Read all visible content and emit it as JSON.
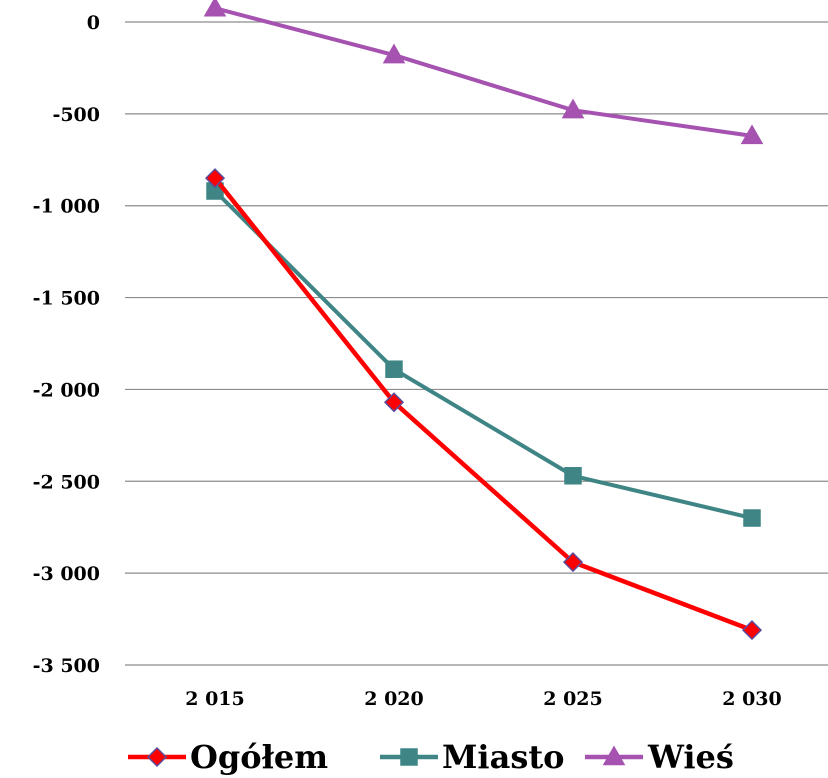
{
  "chart_data": {
    "type": "line",
    "title": "",
    "xlabel": "",
    "ylabel": "",
    "x": [
      "2 015",
      "2 020",
      "2 025",
      "2 030"
    ],
    "ylim": [
      -3500,
      0
    ],
    "yticks": [
      0,
      -500,
      -1000,
      -1500,
      -2000,
      -2500,
      -3000,
      -3500
    ],
    "ytick_labels": [
      "0",
      "-500",
      "-1 000",
      "-1 500",
      "-2 000",
      "-2 500",
      "-3 000",
      "-3 500"
    ],
    "grid": true,
    "legend": "bottom",
    "series": [
      {
        "name": "Ogółem",
        "values": [
          -850,
          -2070,
          -2940,
          -3310
        ],
        "color": "#ff0000",
        "marker": "diamond",
        "marker_fill": "#ff0000",
        "marker_stroke": "#5b4b9b"
      },
      {
        "name": "Miasto",
        "values": [
          -920,
          -1890,
          -2470,
          -2700
        ],
        "color": "#3f8585",
        "marker": "square",
        "marker_fill": "#3f8585",
        "marker_stroke": "#3f8585"
      },
      {
        "name": "Wieś",
        "values": [
          75,
          -180,
          -480,
          -620
        ],
        "color": "#a552b0",
        "marker": "triangle",
        "marker_fill": "#a552b0",
        "marker_stroke": "#a552b0"
      }
    ]
  }
}
